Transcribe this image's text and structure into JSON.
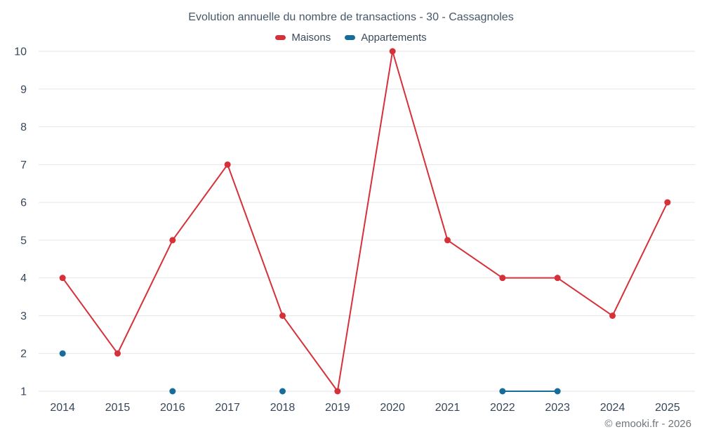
{
  "chart_data": {
    "type": "line",
    "title": "Evolution annuelle du nombre de transactions - 30 - Cassagnoles",
    "categories": [
      "2014",
      "2015",
      "2016",
      "2017",
      "2018",
      "2019",
      "2020",
      "2021",
      "2022",
      "2023",
      "2024",
      "2025"
    ],
    "series": [
      {
        "name": "Maisons",
        "color": "#d63039",
        "values": [
          4,
          2,
          5,
          7,
          3,
          1,
          10,
          5,
          4,
          4,
          3,
          6
        ]
      },
      {
        "name": "Appartements",
        "color": "#166d9c",
        "values": [
          2,
          null,
          1,
          null,
          1,
          null,
          null,
          null,
          1,
          1,
          null,
          null
        ]
      }
    ],
    "ylim": [
      1,
      10
    ],
    "yticks": [
      1,
      2,
      3,
      4,
      5,
      6,
      7,
      8,
      9,
      10
    ],
    "grid": "horizontal",
    "legend_position": "top",
    "credit": "© emooki.fr - 2026"
  },
  "colors": {
    "axis_text": "#37475a",
    "grid": "#e6e6e6"
  }
}
